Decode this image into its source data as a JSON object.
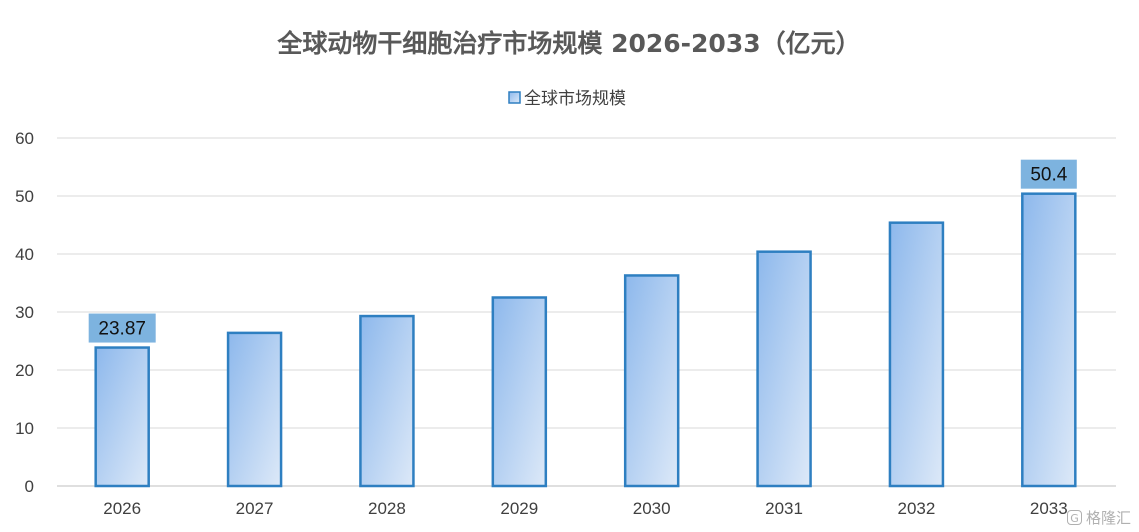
{
  "chart_data": {
    "type": "bar",
    "title": "全球动物干细胞治疗市场规模 2026-2033（亿元）",
    "categories": [
      "2026",
      "2027",
      "2028",
      "2029",
      "2030",
      "2031",
      "2032",
      "2033"
    ],
    "series": [
      {
        "name": "全球市场规模",
        "values": [
          23.87,
          26.4,
          29.3,
          32.5,
          36.3,
          40.4,
          45.4,
          50.4
        ]
      }
    ],
    "data_labels": [
      {
        "category": "2026",
        "text": "23.87"
      },
      {
        "category": "2033",
        "text": "50.4"
      }
    ],
    "ylim": [
      0,
      60
    ],
    "yticks": [
      0,
      10,
      20,
      30,
      40,
      50,
      60
    ],
    "xlabel": "",
    "ylabel": "",
    "grid": true,
    "legend_position": "top-center",
    "colors": {
      "bar_top": "#8db8ec",
      "bar_bottom": "#dde9f8",
      "bar_border": "#2e7fc1",
      "label_bg": "#7db3df",
      "grid": "#d9d9d9",
      "axis": "#bfbfbf"
    }
  },
  "watermark": {
    "icon": "G",
    "text": "格隆汇"
  }
}
